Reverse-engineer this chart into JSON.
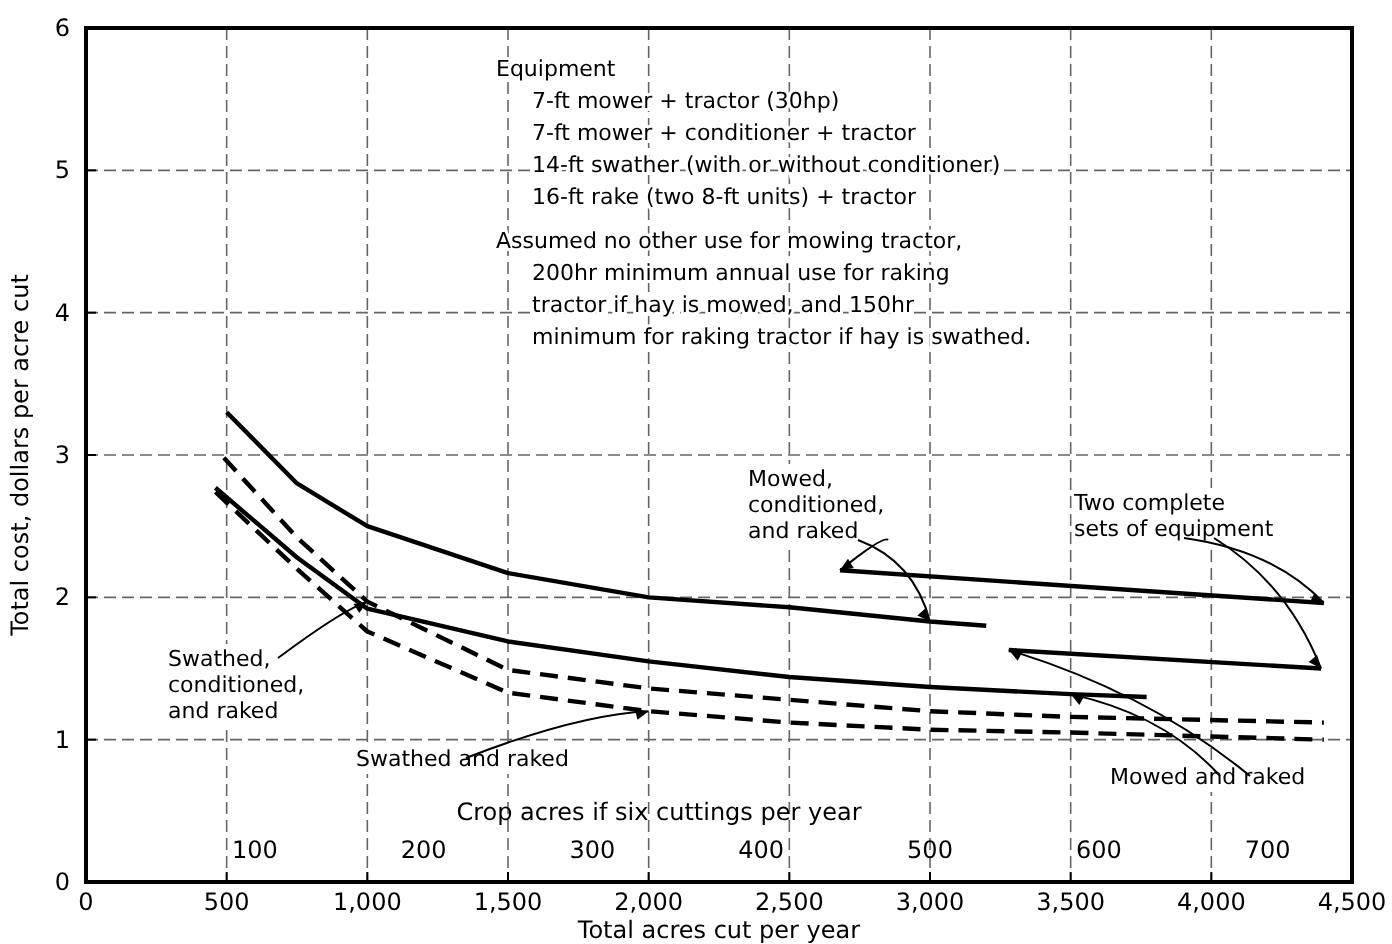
{
  "chart_data": {
    "type": "line",
    "xlabel": "Total acres cut per year",
    "ylabel": "Total cost, dollars per acre cut",
    "x2label": "Crop acres if six cuttings per year",
    "xlim": [
      0,
      4500
    ],
    "xticks": [
      0,
      500,
      {
        "value": 1000,
        "label": "1,000"
      },
      {
        "value": 1500,
        "label": "1,500"
      },
      {
        "value": 2000,
        "label": "2,000"
      },
      {
        "value": 2500,
        "label": "2,500"
      },
      {
        "value": 3000,
        "label": "3,000"
      },
      {
        "value": 3500,
        "label": "3,500"
      },
      {
        "value": 4000,
        "label": "4,000"
      },
      {
        "value": 4500,
        "label": "4,500"
      }
    ],
    "x2lim": [
      0,
      750
    ],
    "x2ticks": [
      100,
      200,
      300,
      400,
      500,
      600,
      700
    ],
    "ylim": [
      0,
      6
    ],
    "yticks": [
      0,
      1,
      2,
      3,
      4,
      5,
      6
    ],
    "grid": true,
    "marker": "none",
    "series": [
      {
        "color": "#000000",
        "line_style": "solid",
        "x": [
          500,
          750,
          1000,
          1500,
          2000,
          2500,
          3000,
          3200
        ],
        "values": [
          3.3,
          2.8,
          2.5,
          2.17,
          2.0,
          1.93,
          1.83,
          1.8
        ]
      },
      {
        "color": "#000000",
        "line_style": "solid",
        "x": [
          460,
          750,
          1000,
          1500,
          2000,
          2500,
          3000,
          3500,
          3770
        ],
        "values": [
          2.77,
          2.28,
          1.92,
          1.69,
          1.55,
          1.44,
          1.37,
          1.32,
          1.3
        ]
      },
      {
        "color": "#000000",
        "line_style": "dashed",
        "x": [
          490,
          750,
          1000,
          1500,
          2000,
          2500,
          3000,
          3500,
          4400
        ],
        "values": [
          2.98,
          2.42,
          1.97,
          1.49,
          1.36,
          1.28,
          1.2,
          1.16,
          1.12
        ]
      },
      {
        "color": "#000000",
        "line_style": "dashed",
        "x": [
          460,
          750,
          1000,
          1500,
          2000,
          2500,
          3000,
          3500,
          4400
        ],
        "values": [
          2.74,
          2.2,
          1.76,
          1.33,
          1.2,
          1.12,
          1.07,
          1.05,
          1.0
        ]
      },
      {
        "color": "#000000",
        "line_style": "solid",
        "x": [
          2680,
          4400
        ],
        "values": [
          2.19,
          1.96
        ]
      },
      {
        "color": "#000000",
        "line_style": "solid",
        "x": [
          3280,
          4390
        ],
        "values": [
          1.63,
          1.5
        ]
      }
    ],
    "annotations": [
      "Equipment",
      "7-ft mower + tractor (30hp)",
      "7-ft mower + conditioner + tractor",
      "14-ft swather (with or without conditioner)",
      "16-ft rake (two 8-ft units) + tractor",
      "Assumed no other use for mowing tractor,",
      "200hr minimum annual use for raking",
      "tractor if hay is mowed, and 150hr",
      "minimum for raking tractor if hay is swathed.",
      {
        "text": "Mowed,\nconditioned,\nand raked",
        "x": 3000,
        "y": 1.83
      },
      {
        "text": "Two complete\nsets of equipment",
        "x": 4400,
        "y": 1.96
      },
      {
        "text": "Swathed,\nconditioned,\nand raked",
        "x": 1000,
        "y": 1.97
      },
      {
        "text": "Swathed and raked",
        "x": 2000,
        "y": 1.2
      },
      {
        "text": "Mowed and raked",
        "x": 3500,
        "y": 1.32
      }
    ]
  }
}
